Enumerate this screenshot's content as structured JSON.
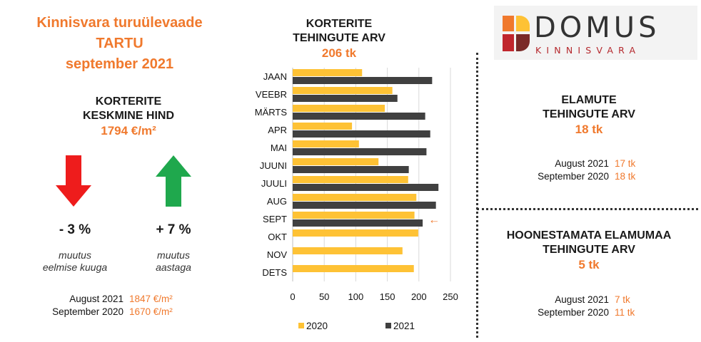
{
  "header": {
    "title_line1": "Kinnisvara turuülevaade",
    "title_line2": "TARTU",
    "title_line3": "september 2021"
  },
  "apartment_price": {
    "heading_line1": "KORTERITE",
    "heading_line2": "KESKMINE HIND",
    "value": "1794 €/m²",
    "month_change": "- 3 %",
    "month_note_line1": "muutus",
    "month_note_line2": "eelmise kuuga",
    "year_change": "+ 7 %",
    "year_note_line1": "muutus",
    "year_note_line2": "aastaga",
    "cmp1_label": "August 2021",
    "cmp1_value": "1847 €/m²",
    "cmp2_label": "September 2020",
    "cmp2_value": "1670 €/m²",
    "down_color": "#ee1c1c",
    "up_color": "#1fa84d"
  },
  "chart_heading": {
    "line1": "KORTERITE",
    "line2": "TEHINGUTE ARV",
    "value": "206 tk"
  },
  "chart_data": {
    "type": "bar",
    "orientation": "horizontal",
    "categories": [
      "JAAN",
      "VEEBR",
      "MÄRTS",
      "APR",
      "MAI",
      "JUUNI",
      "JUULI",
      "AUG",
      "SEPT",
      "OKT",
      "NOV",
      "DETS"
    ],
    "series": [
      {
        "name": "2020",
        "color": "#fec235",
        "values": [
          110,
          158,
          146,
          94,
          105,
          136,
          183,
          196,
          193,
          199,
          174,
          192
        ]
      },
      {
        "name": "2021",
        "color": "#404040",
        "values": [
          221,
          166,
          210,
          218,
          212,
          184,
          231,
          227,
          206,
          null,
          null,
          null
        ]
      }
    ],
    "xlim": [
      0,
      250
    ],
    "ticks": [
      0,
      50,
      100,
      150,
      200,
      250
    ],
    "tick_labels": [
      "0",
      "50",
      "100",
      "150",
      "200",
      "250"
    ],
    "grid": true,
    "legend_position": "bottom",
    "highlight_category": "SEPT",
    "highlight_marker": "←"
  },
  "logo": {
    "name_line1": "DOMUS",
    "name_line2": "KINNISVARA",
    "colors": [
      "#f0792d",
      "#fec235",
      "#c0262d",
      "#7a2a28"
    ]
  },
  "houses": {
    "heading_line1": "ELAMUTE",
    "heading_line2": "TEHINGUTE ARV",
    "value": "18 tk",
    "cmp1_label": "August 2021",
    "cmp1_value": "17 tk",
    "cmp2_label": "September 2020",
    "cmp2_value": "18 tk"
  },
  "land": {
    "heading_line1": "HOONESTAMATA ELAMUMAA",
    "heading_line2": "TEHINGUTE ARV",
    "value": "5 tk",
    "cmp1_label": "August 2021",
    "cmp1_value": "7 tk",
    "cmp2_label": "September 2020",
    "cmp2_value": "11 tk"
  }
}
